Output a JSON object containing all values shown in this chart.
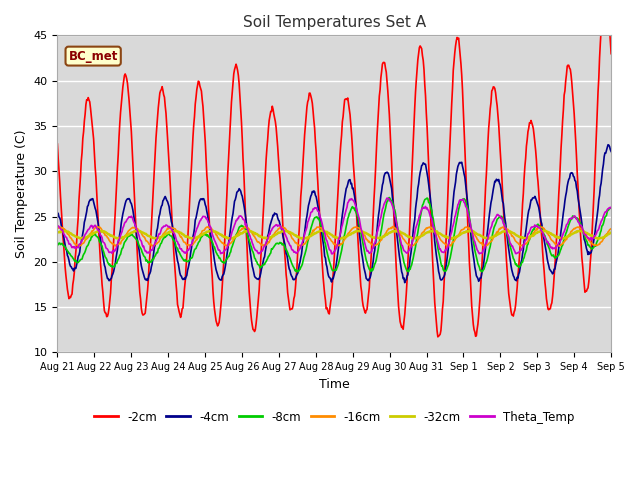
{
  "title": "Soil Temperatures Set A",
  "xlabel": "Time",
  "ylabel": "Soil Temperature (C)",
  "ylim": [
    10,
    45
  ],
  "annotation": "BC_met",
  "background_color": "#d9d9d9",
  "fig_background": "#ffffff",
  "grid_color": "#ffffff",
  "series": [
    {
      "label": "-2cm",
      "color": "#ff0000",
      "lw": 1.2
    },
    {
      "label": "-4cm",
      "color": "#00008b",
      "lw": 1.2
    },
    {
      "label": "-8cm",
      "color": "#00cc00",
      "lw": 1.2
    },
    {
      "label": "-16cm",
      "color": "#ff8c00",
      "lw": 1.2
    },
    {
      "label": "-32cm",
      "color": "#cccc00",
      "lw": 1.8
    },
    {
      "label": "Theta_Temp",
      "color": "#cc00cc",
      "lw": 1.2
    }
  ],
  "tick_labels": [
    "Aug 21",
    "Aug 22",
    "Aug 23",
    "Aug 24",
    "Aug 25",
    "Aug 26",
    "Aug 27",
    "Aug 28",
    "Aug 29",
    "Aug 30",
    "Aug 31",
    "Sep 1",
    "Sep 2",
    "Sep 3",
    "Sep 4",
    "Sep 5"
  ],
  "n_days": 15,
  "pts_per_day": 48
}
